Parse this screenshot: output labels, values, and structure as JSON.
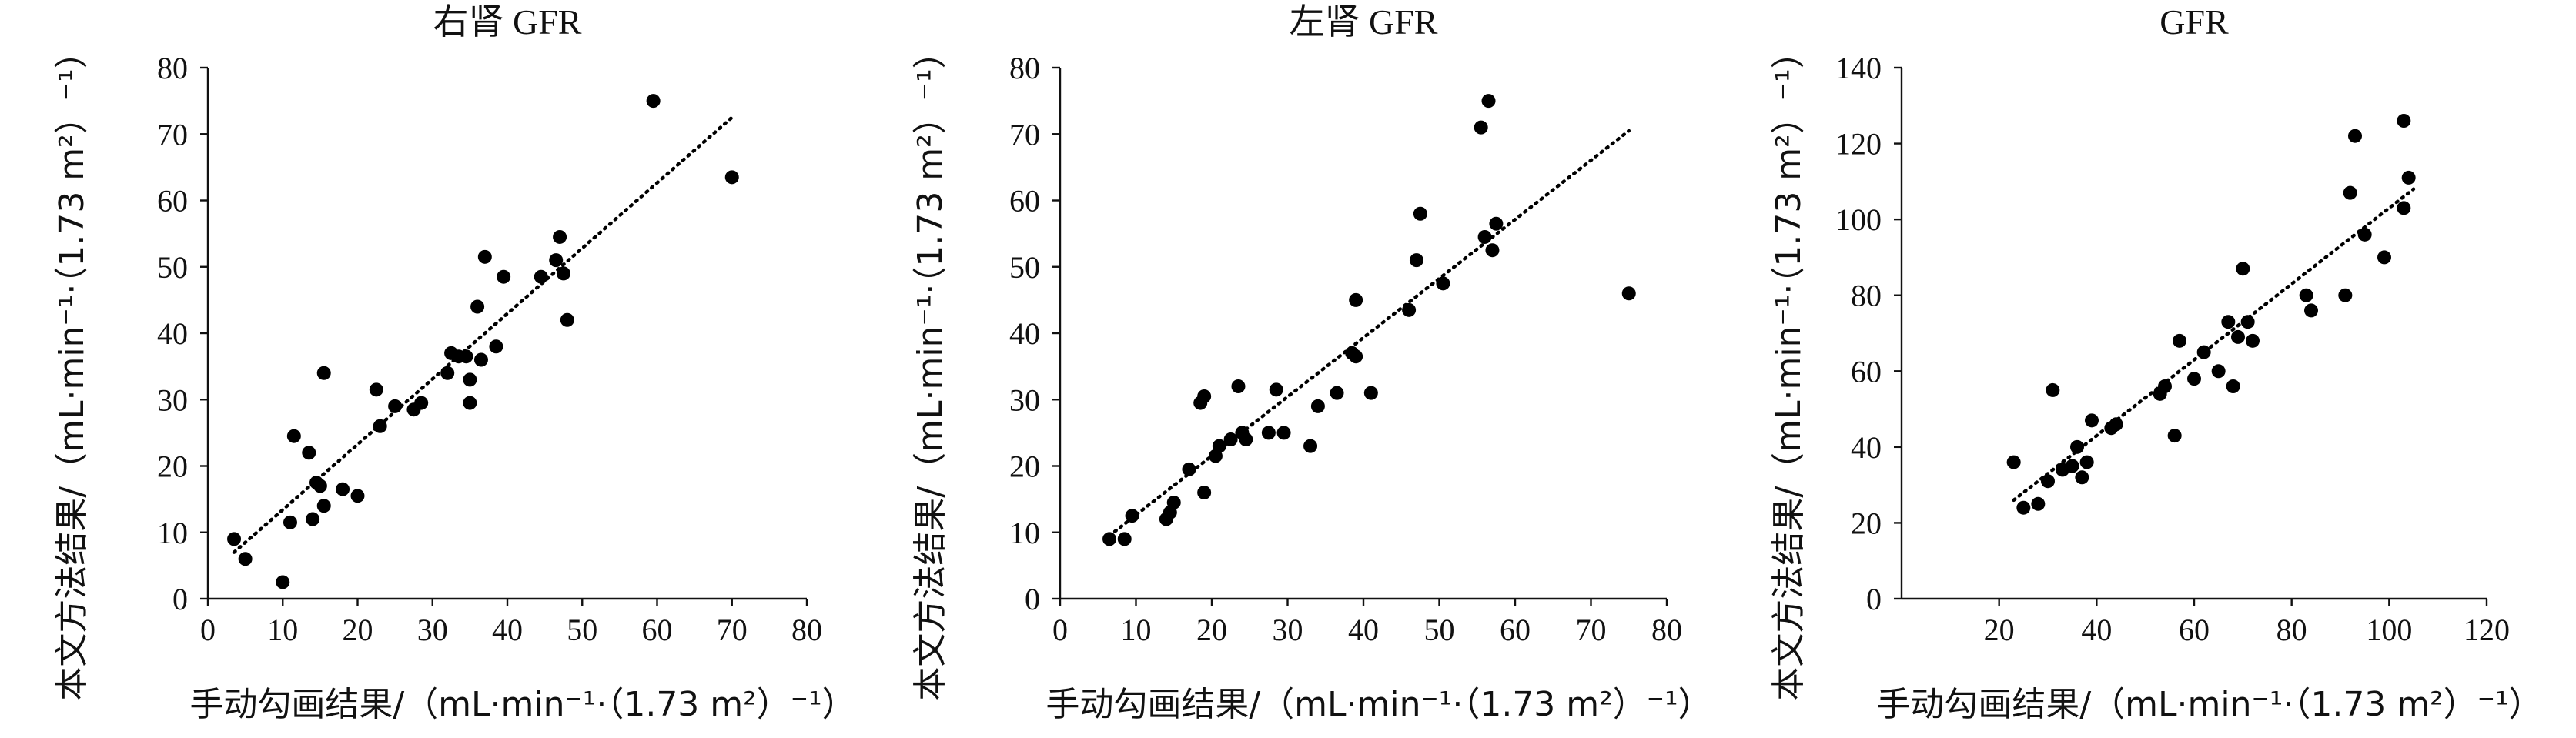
{
  "chart_data": [
    {
      "type": "scatter",
      "title": "右肾 GFR",
      "xlabel": "手动勾画结果/（mL·min⁻¹·（1.73 m²）⁻¹）",
      "ylabel": "本文方法结果/（mL·min⁻¹·（1.73 m²）⁻¹）",
      "xlim": [
        0,
        80
      ],
      "ylim": [
        0,
        80
      ],
      "xticks": [
        "0",
        "10",
        "20",
        "30",
        "40",
        "50",
        "60",
        "70",
        "80"
      ],
      "yticks": [
        "0",
        "10",
        "20",
        "30",
        "40",
        "50",
        "60",
        "70",
        "80"
      ],
      "trendline": {
        "style": "dotted",
        "x": [
          3.5,
          70
        ],
        "y": [
          7,
          72.5
        ]
      },
      "grid": false,
      "points": [
        [
          3.5,
          9
        ],
        [
          5,
          6
        ],
        [
          10,
          2.5
        ],
        [
          11,
          11.5
        ],
        [
          11.5,
          24.5
        ],
        [
          13.5,
          22
        ],
        [
          14,
          12
        ],
        [
          14.5,
          17.5
        ],
        [
          15,
          17
        ],
        [
          15.5,
          14
        ],
        [
          15.5,
          34
        ],
        [
          18,
          16.5
        ],
        [
          20,
          15.5
        ],
        [
          22.5,
          31.5
        ],
        [
          23,
          26
        ],
        [
          25,
          29
        ],
        [
          27.5,
          28.5
        ],
        [
          28.5,
          29.5
        ],
        [
          32,
          34
        ],
        [
          32.5,
          37
        ],
        [
          33.5,
          36.5
        ],
        [
          34.5,
          36.5
        ],
        [
          35,
          33
        ],
        [
          35,
          29.5
        ],
        [
          36,
          44
        ],
        [
          36.5,
          36
        ],
        [
          37,
          51.5
        ],
        [
          38.5,
          38
        ],
        [
          39.5,
          48.5
        ],
        [
          44.5,
          48.5
        ],
        [
          46.5,
          51
        ],
        [
          47,
          54.5
        ],
        [
          47.5,
          49
        ],
        [
          48,
          42
        ],
        [
          59.5,
          75
        ],
        [
          70,
          63.5
        ]
      ]
    },
    {
      "type": "scatter",
      "title": "左肾 GFR",
      "xlabel": "手动勾画结果/（mL·min⁻¹·（1.73 m²）⁻¹）",
      "ylabel": "本文方法结果/（mL·min⁻¹·（1.73 m²）⁻¹）",
      "xlim": [
        0,
        80
      ],
      "ylim": [
        0,
        80
      ],
      "xticks": [
        "0",
        "10",
        "20",
        "30",
        "40",
        "50",
        "60",
        "70",
        "80"
      ],
      "yticks": [
        "0",
        "10",
        "20",
        "30",
        "40",
        "50",
        "60",
        "70",
        "80"
      ],
      "trendline": {
        "style": "dotted",
        "x": [
          6.5,
          75
        ],
        "y": [
          9.5,
          70.5
        ]
      },
      "grid": false,
      "points": [
        [
          6.5,
          9
        ],
        [
          8.5,
          9
        ],
        [
          9.5,
          12.5
        ],
        [
          14,
          12
        ],
        [
          14.5,
          13
        ],
        [
          15,
          14.5
        ],
        [
          17,
          19.5
        ],
        [
          18.5,
          29.5
        ],
        [
          19,
          30.5
        ],
        [
          19,
          16
        ],
        [
          20.5,
          21.5
        ],
        [
          21,
          23
        ],
        [
          22.5,
          24
        ],
        [
          23.5,
          32
        ],
        [
          24,
          25
        ],
        [
          24.5,
          24
        ],
        [
          27.5,
          25
        ],
        [
          28.5,
          31.5
        ],
        [
          29.5,
          25
        ],
        [
          33,
          23
        ],
        [
          34,
          29
        ],
        [
          36.5,
          31
        ],
        [
          38.5,
          37
        ],
        [
          39,
          45
        ],
        [
          39,
          36.5
        ],
        [
          41,
          31
        ],
        [
          46,
          43.5
        ],
        [
          47,
          51
        ],
        [
          47.5,
          58
        ],
        [
          50.5,
          47.5
        ],
        [
          55.5,
          71
        ],
        [
          56,
          54.5
        ],
        [
          56.5,
          75
        ],
        [
          57,
          52.5
        ],
        [
          57.5,
          56.5
        ],
        [
          75,
          46
        ]
      ]
    },
    {
      "type": "scatter",
      "title": "GFR",
      "xlabel": "手动勾画结果/（mL·min⁻¹·（1.73 m²）⁻¹）",
      "ylabel": "本文方法结果/（mL·min⁻¹·（1.73 m²）⁻¹）",
      "xlim": [
        0,
        120
      ],
      "ylim": [
        0,
        140
      ],
      "xticks": [
        "20",
        "40",
        "60",
        "80",
        "100",
        "120"
      ],
      "yticks": [
        "0",
        "20",
        "40",
        "60",
        "80",
        "100",
        "120",
        "140"
      ],
      "trendline": {
        "style": "dotted",
        "x": [
          23,
          105
        ],
        "y": [
          26,
          108
        ]
      },
      "grid": false,
      "points": [
        [
          23,
          36
        ],
        [
          25,
          24
        ],
        [
          28,
          25
        ],
        [
          30,
          31
        ],
        [
          31,
          55
        ],
        [
          33,
          34
        ],
        [
          35,
          35
        ],
        [
          36,
          40
        ],
        [
          37,
          32
        ],
        [
          38,
          36
        ],
        [
          39,
          47
        ],
        [
          43,
          45
        ],
        [
          44,
          46
        ],
        [
          53,
          54
        ],
        [
          54,
          56
        ],
        [
          56,
          43
        ],
        [
          57,
          68
        ],
        [
          60,
          58
        ],
        [
          62,
          65
        ],
        [
          65,
          60
        ],
        [
          67,
          73
        ],
        [
          68,
          56
        ],
        [
          69,
          69
        ],
        [
          70,
          87
        ],
        [
          71,
          73
        ],
        [
          72,
          68
        ],
        [
          83,
          80
        ],
        [
          84,
          76
        ],
        [
          91,
          80
        ],
        [
          92,
          107
        ],
        [
          93,
          122
        ],
        [
          95,
          96
        ],
        [
          99,
          90
        ],
        [
          103,
          126
        ],
        [
          103,
          103
        ],
        [
          104,
          111
        ]
      ]
    }
  ]
}
